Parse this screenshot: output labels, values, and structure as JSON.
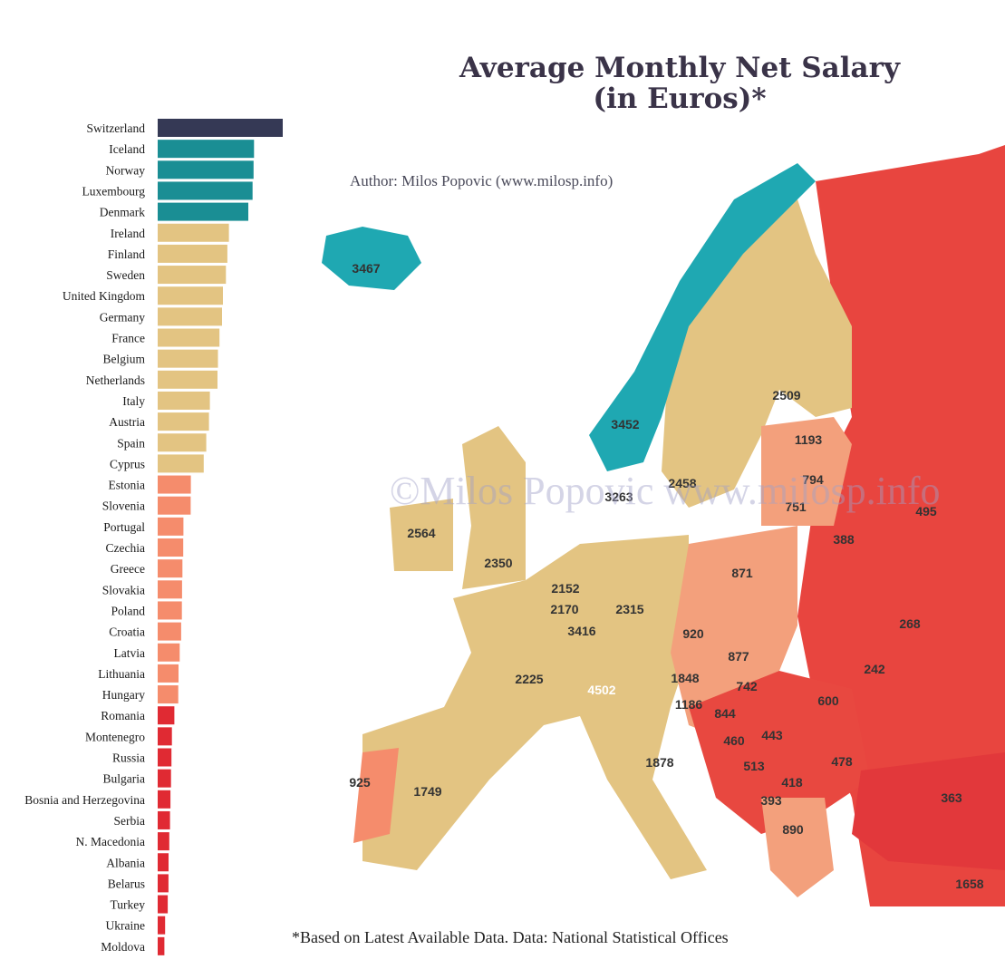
{
  "title_line1": "Average Monthly Net Salary",
  "title_line2": "(in Euros)*",
  "author": "Author: Milos Popovic (www.milosp.info)",
  "watermark": "©Milos Popovic www.milosp.info",
  "footnote": "*Based on Latest Available Data. Data:  National Statistical Offices",
  "colors": {
    "top": "#353955",
    "teal": "#1a8e94",
    "sand": "#e3c482",
    "salmon": "#f58c6c",
    "red": "#e02a33",
    "map_teal": "#1fa8b2"
  },
  "chart_data": {
    "type": "bar",
    "orientation": "horizontal",
    "categories": [
      "Switzerland",
      "Iceland",
      "Norway",
      "Luxembourg",
      "Denmark",
      "Ireland",
      "Finland",
      "Sweden",
      "United Kingdom",
      "Germany",
      "France",
      "Belgium",
      "Netherlands",
      "Italy",
      "Austria",
      "Spain",
      "Cyprus",
      "Estonia",
      "Slovenia",
      "Portugal",
      "Czechia",
      "Greece",
      "Slovakia",
      "Poland",
      "Croatia",
      "Latvia",
      "Lithuania",
      "Hungary",
      "Romania",
      "Montenegro",
      "Russia",
      "Bulgaria",
      "Bosnia and Herzegovina",
      "Serbia",
      "N. Macedonia",
      "Albania",
      "Belarus",
      "Turkey",
      "Ukraine",
      "Moldova"
    ],
    "values": [
      4502,
      3467,
      3452,
      3416,
      3263,
      2564,
      2509,
      2458,
      2350,
      2315,
      2225,
      2170,
      2152,
      1878,
      1848,
      1749,
      1658,
      1193,
      1186,
      925,
      920,
      890,
      877,
      871,
      844,
      794,
      751,
      742,
      600,
      513,
      495,
      478,
      460,
      443,
      418,
      393,
      388,
      363,
      268,
      242
    ],
    "color_groups": [
      "top",
      "teal",
      "teal",
      "teal",
      "teal",
      "sand",
      "sand",
      "sand",
      "sand",
      "sand",
      "sand",
      "sand",
      "sand",
      "sand",
      "sand",
      "sand",
      "sand",
      "salmon",
      "salmon",
      "salmon",
      "salmon",
      "salmon",
      "salmon",
      "salmon",
      "salmon",
      "salmon",
      "salmon",
      "salmon",
      "red",
      "red",
      "red",
      "red",
      "red",
      "red",
      "red",
      "red",
      "red",
      "red",
      "red",
      "red"
    ],
    "map_labels": [
      {
        "country": "Iceland",
        "value": "3467",
        "group": "map_teal"
      },
      {
        "country": "Norway",
        "value": "3452",
        "group": "map_teal"
      },
      {
        "country": "Finland",
        "value": "2509",
        "group": "sand"
      },
      {
        "country": "Sweden",
        "value": "2458",
        "group": "sand"
      },
      {
        "country": "Denmark",
        "value": "3263",
        "group": "map_teal"
      },
      {
        "country": "Estonia",
        "value": "1193",
        "group": "salmon"
      },
      {
        "country": "Latvia",
        "value": "794",
        "group": "salmon"
      },
      {
        "country": "Lithuania",
        "value": "751",
        "group": "salmon"
      },
      {
        "country": "Russia",
        "value": "495",
        "group": "red"
      },
      {
        "country": "Belarus",
        "value": "388",
        "group": "red"
      },
      {
        "country": "Ireland",
        "value": "2564",
        "group": "sand"
      },
      {
        "country": "United Kingdom",
        "value": "2350",
        "group": "sand"
      },
      {
        "country": "Netherlands",
        "value": "2152",
        "group": "sand"
      },
      {
        "country": "Belgium",
        "value": "2170",
        "group": "sand"
      },
      {
        "country": "Germany",
        "value": "2315",
        "group": "sand"
      },
      {
        "country": "Luxembourg",
        "value": "3416",
        "group": "map_teal"
      },
      {
        "country": "Poland",
        "value": "871",
        "group": "salmon"
      },
      {
        "country": "Czechia",
        "value": "920",
        "group": "salmon"
      },
      {
        "country": "Slovakia",
        "value": "877",
        "group": "salmon"
      },
      {
        "country": "Ukraine",
        "value": "268",
        "group": "red"
      },
      {
        "country": "Moldova",
        "value": "242",
        "group": "red"
      },
      {
        "country": "France",
        "value": "2225",
        "group": "sand"
      },
      {
        "country": "Switzerland",
        "value": "4502",
        "group": "top"
      },
      {
        "country": "Austria",
        "value": "1848",
        "group": "sand"
      },
      {
        "country": "Hungary",
        "value": "742",
        "group": "salmon"
      },
      {
        "country": "Romania",
        "value": "600",
        "group": "red"
      },
      {
        "country": "Slovenia",
        "value": "1186",
        "group": "salmon"
      },
      {
        "country": "Croatia",
        "value": "844",
        "group": "salmon"
      },
      {
        "country": "Bosnia and Herzegovina",
        "value": "460",
        "group": "red"
      },
      {
        "country": "Serbia",
        "value": "443",
        "group": "red"
      },
      {
        "country": "Montenegro",
        "value": "513",
        "group": "red"
      },
      {
        "country": "Bulgaria",
        "value": "478",
        "group": "red"
      },
      {
        "country": "N. Macedonia",
        "value": "418",
        "group": "red"
      },
      {
        "country": "Albania",
        "value": "393",
        "group": "red"
      },
      {
        "country": "Portugal",
        "value": "925",
        "group": "salmon"
      },
      {
        "country": "Spain",
        "value": "1749",
        "group": "sand"
      },
      {
        "country": "Italy",
        "value": "1878",
        "group": "sand"
      },
      {
        "country": "Greece",
        "value": "890",
        "group": "salmon"
      },
      {
        "country": "Turkey",
        "value": "363",
        "group": "red"
      },
      {
        "country": "Cyprus",
        "value": "1658",
        "group": "sand"
      }
    ]
  }
}
